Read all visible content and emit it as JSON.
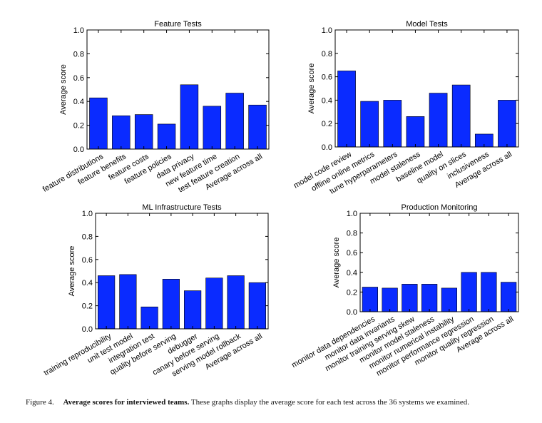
{
  "figure": {
    "caption_label": "Figure 4.",
    "caption_title": "Average scores for interviewed teams.",
    "caption_text": "These graphs display the average score for each test across the 36 systems we examined."
  },
  "colors": {
    "bar": "#0a2bff",
    "edge": "#000000",
    "axis": "#000000"
  },
  "chart_data": [
    {
      "type": "bar",
      "title": "Feature Tests",
      "xlabel": "",
      "ylabel": "Average score",
      "ylim": [
        0,
        1.0
      ],
      "yticks": [
        "0.0",
        "0.2",
        "0.4",
        "0.6",
        "0.8",
        "1.0"
      ],
      "categories": [
        "feature distributions",
        "feature benefits",
        "feature costs",
        "feature policies",
        "data privacy",
        "new feature time",
        "test feature creation",
        "Average across all"
      ],
      "values": [
        0.43,
        0.28,
        0.29,
        0.21,
        0.54,
        0.36,
        0.47,
        0.37
      ]
    },
    {
      "type": "bar",
      "title": "Model Tests",
      "xlabel": "",
      "ylabel": "Average score",
      "ylim": [
        0,
        1.0
      ],
      "yticks": [
        "0.0",
        "0.2",
        "0.4",
        "0.6",
        "0.8",
        "1.0"
      ],
      "categories": [
        "model code review",
        "offline online metrics",
        "tune hyperparameters",
        "model staleness",
        "baseline model",
        "quality on slices",
        "inclusiveness",
        "Average across all"
      ],
      "values": [
        0.65,
        0.39,
        0.4,
        0.26,
        0.46,
        0.53,
        0.11,
        0.4
      ]
    },
    {
      "type": "bar",
      "title": "ML Infrastructure Tests",
      "xlabel": "",
      "ylabel": "Average score",
      "ylim": [
        0,
        1.0
      ],
      "yticks": [
        "0.0",
        "0.2",
        "0.4",
        "0.6",
        "0.8",
        "1.0"
      ],
      "categories": [
        "training reproducibility",
        "unit test model",
        "integration test",
        "quality before serving",
        "debugger",
        "canary before serving",
        "serving model rollback",
        "Average across all"
      ],
      "values": [
        0.46,
        0.47,
        0.19,
        0.43,
        0.33,
        0.44,
        0.46,
        0.4
      ]
    },
    {
      "type": "bar",
      "title": "Production Monitoring",
      "xlabel": "",
      "ylabel": "Average score",
      "ylim": [
        0,
        1.0
      ],
      "yticks": [
        "0.0",
        "0.2",
        "0.4",
        "0.6",
        "0.8",
        "1.0"
      ],
      "categories": [
        "monitor data dependencies",
        "monitor data invariants",
        "monitor training serving skew",
        "monitor model staleness",
        "monitor numerical instability",
        "monitor performance regression",
        "monitor quality regression",
        "Average across all"
      ],
      "values": [
        0.25,
        0.24,
        0.28,
        0.28,
        0.24,
        0.4,
        0.4,
        0.3
      ]
    }
  ]
}
